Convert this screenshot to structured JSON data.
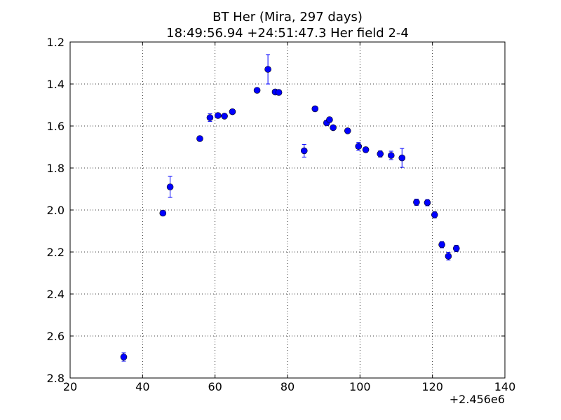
{
  "chart_data": {
    "type": "scatter",
    "title": "BT Her (Mira, 297 days)",
    "subtitle": "18:49:56.94 +24:51:47.3 Her field 2-4",
    "xlabel": "",
    "ylabel": "",
    "x_offset_label": "+2.456e6",
    "xlim": [
      20,
      140
    ],
    "ylim": [
      2.8,
      1.2
    ],
    "y_inverted": true,
    "grid": true,
    "x_ticks": [
      "20",
      "40",
      "60",
      "80",
      "100",
      "120",
      "140"
    ],
    "y_ticks": [
      "1.2",
      "1.4",
      "1.6",
      "1.8",
      "2.0",
      "2.2",
      "2.4",
      "2.6",
      "2.8"
    ],
    "marker_color": "#0000ff",
    "series": [
      {
        "points": [
          {
            "x": 34.8,
            "y": 2.7,
            "err": 0.02
          },
          {
            "x": 45.6,
            "y": 2.015,
            "err": 0.012
          },
          {
            "x": 47.6,
            "y": 1.89,
            "err": 0.05
          },
          {
            "x": 55.8,
            "y": 1.66,
            "err": 0.012
          },
          {
            "x": 58.6,
            "y": 1.56,
            "err": 0.018
          },
          {
            "x": 60.8,
            "y": 1.55,
            "err": 0.01
          },
          {
            "x": 62.6,
            "y": 1.553,
            "err": 0.01
          },
          {
            "x": 64.8,
            "y": 1.532,
            "err": 0.01
          },
          {
            "x": 71.6,
            "y": 1.43,
            "err": 0.008
          },
          {
            "x": 74.6,
            "y": 1.33,
            "err": 0.07
          },
          {
            "x": 76.6,
            "y": 1.438,
            "err": 0.01
          },
          {
            "x": 77.6,
            "y": 1.44,
            "err": 0.012
          },
          {
            "x": 84.6,
            "y": 1.718,
            "err": 0.03
          },
          {
            "x": 87.6,
            "y": 1.518,
            "err": 0.012
          },
          {
            "x": 90.8,
            "y": 1.585,
            "err": 0.012
          },
          {
            "x": 91.6,
            "y": 1.57,
            "err": 0.012
          },
          {
            "x": 92.6,
            "y": 1.608,
            "err": 0.01
          },
          {
            "x": 96.6,
            "y": 1.623,
            "err": 0.01
          },
          {
            "x": 99.6,
            "y": 1.697,
            "err": 0.018
          },
          {
            "x": 101.6,
            "y": 1.713,
            "err": 0.012
          },
          {
            "x": 105.6,
            "y": 1.733,
            "err": 0.015
          },
          {
            "x": 108.6,
            "y": 1.74,
            "err": 0.02
          },
          {
            "x": 111.6,
            "y": 1.752,
            "err": 0.045
          },
          {
            "x": 115.6,
            "y": 1.963,
            "err": 0.015
          },
          {
            "x": 118.6,
            "y": 1.965,
            "err": 0.015
          },
          {
            "x": 120.6,
            "y": 2.023,
            "err": 0.015
          },
          {
            "x": 122.6,
            "y": 2.165,
            "err": 0.015
          },
          {
            "x": 124.4,
            "y": 2.22,
            "err": 0.018
          },
          {
            "x": 126.6,
            "y": 2.183,
            "err": 0.015
          }
        ]
      }
    ]
  }
}
